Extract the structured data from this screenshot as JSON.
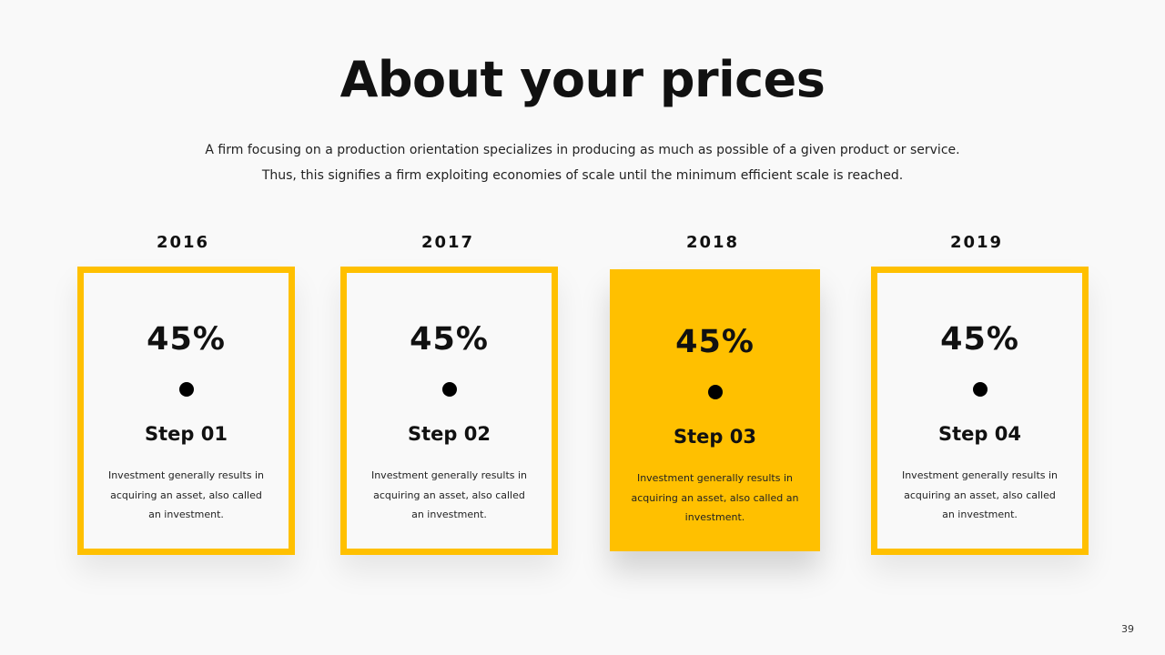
{
  "title": "About your prices",
  "subtitle_lines": [
    "A firm focusing on a production orientation specializes in producing as much as possible of a given product or service.",
    "Thus, this signifies a firm exploiting economies of scale until the minimum efficient scale is reached."
  ],
  "accent_color": "#FFC000",
  "cards": [
    {
      "year": "2016",
      "percent": "45%",
      "step": "Step 01",
      "description": "Investment generally results in acquiring an asset, also called an investment.",
      "highlighted": false
    },
    {
      "year": "2017",
      "percent": "45%",
      "step": "Step 02",
      "description": "Investment generally results in acquiring an asset, also called an investment.",
      "highlighted": false
    },
    {
      "year": "2018",
      "percent": "45%",
      "step": "Step 03",
      "description": "Investment generally results in acquiring an asset, also called an investment.",
      "highlighted": true
    },
    {
      "year": "2019",
      "percent": "45%",
      "step": "Step 04",
      "description": "Investment generally results in acquiring an asset, also called an investment.",
      "highlighted": false
    }
  ],
  "page_number": "39"
}
